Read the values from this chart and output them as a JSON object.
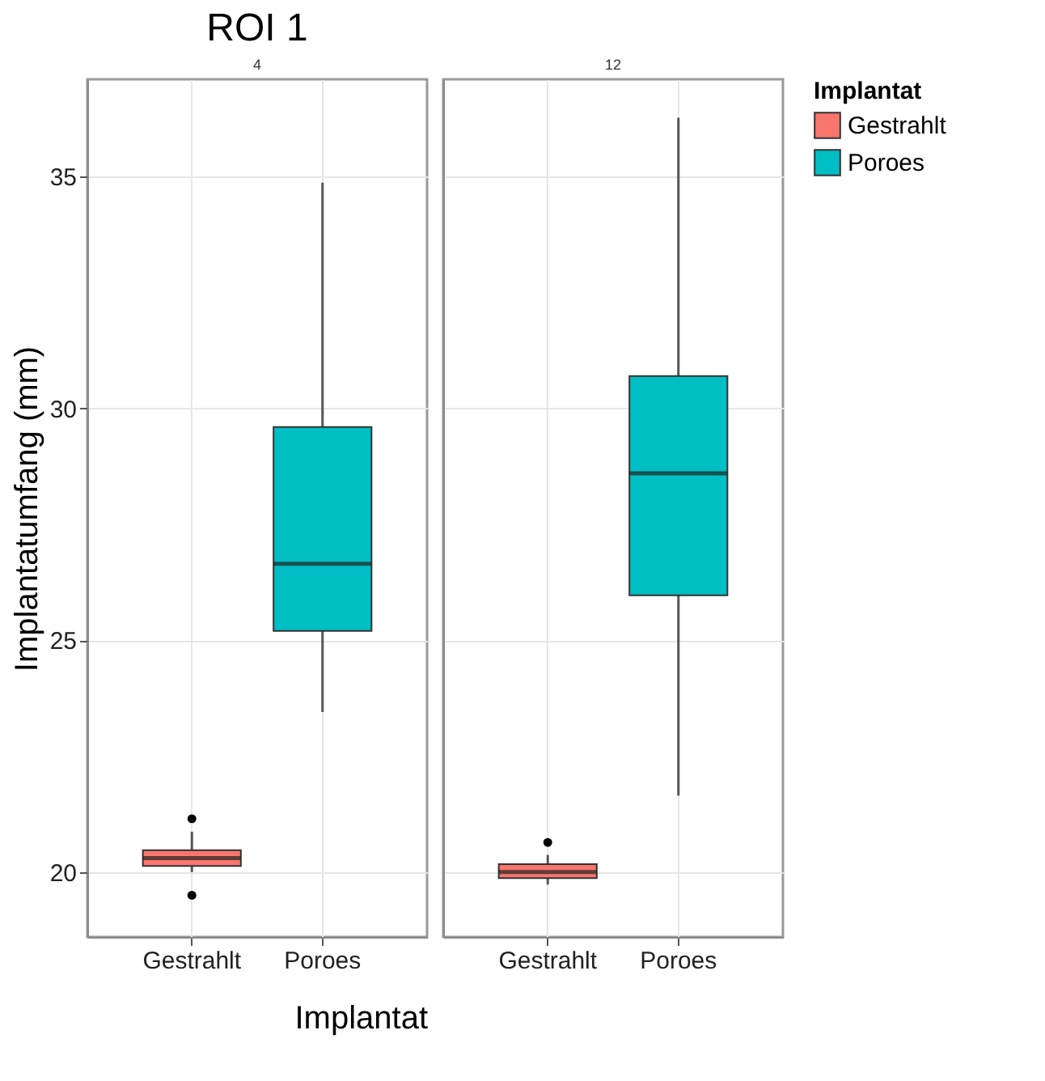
{
  "chart_data": [
    {
      "type": "box",
      "title": "ROI 1",
      "subtitle": "4",
      "xlabel": "Implantat",
      "ylabel": "Implantatumfang (mm)",
      "categories": [
        "Gestrahlt",
        "Poroes"
      ],
      "series": [
        {
          "name": "Gestrahlt",
          "color": "#f8766d",
          "boxes": [
            {
              "low": 20.0,
              "q1": 20.13,
              "median": 20.3,
              "q3": 20.47,
              "high": 20.87,
              "outliers": [
                21.15,
                19.5
              ]
            },
            null
          ]
        },
        {
          "name": "Poroes",
          "color": "#00bfc4",
          "boxes": [
            null,
            {
              "low": 23.45,
              "q1": 25.2,
              "median": 26.65,
              "q3": 29.6,
              "high": 34.87
            }
          ]
        }
      ],
      "ylim": [
        18.6,
        37.1
      ],
      "yticks": [
        20,
        25,
        30,
        35
      ],
      "grid": true,
      "legend": "right",
      "legend_title": "Implantat"
    },
    {
      "type": "box",
      "subtitle": "12",
      "categories": [
        "Gestrahlt",
        "Poroes"
      ],
      "series": [
        {
          "color": "#f8766d",
          "boxes": [
            {
              "low": 19.73,
              "q1": 19.87,
              "median": 20.0,
              "q3": 20.17,
              "high": 20.37,
              "outliers": [
                20.64
              ]
            },
            null
          ]
        },
        {
          "color": "#00bfc4",
          "boxes": [
            null,
            {
              "low": 21.65,
              "q1": 25.97,
              "median": 28.6,
              "q3": 30.7,
              "high": 36.27
            }
          ]
        }
      ],
      "ylim": [
        18.6,
        37.1
      ],
      "yticks": [
        20,
        25,
        30,
        35
      ],
      "grid": true,
      "tick_labels": "x"
    }
  ]
}
